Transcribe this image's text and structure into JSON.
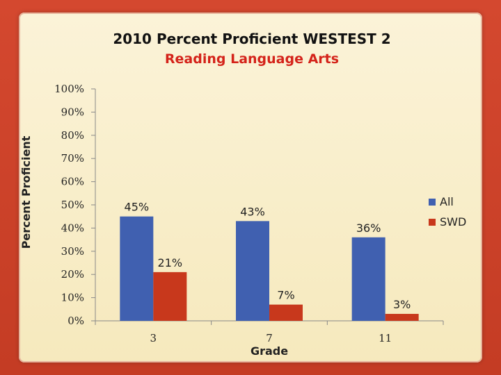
{
  "chart_data": {
    "type": "bar",
    "title": "2010 Percent Proficient WESTEST 2",
    "subtitle": "Reading Language Arts",
    "xlabel": "Grade",
    "ylabel": "Percent Proficient",
    "ylim": [
      0,
      100
    ],
    "y_ticks": [
      "0%",
      "10%",
      "20%",
      "30%",
      "40%",
      "50%",
      "60%",
      "70%",
      "80%",
      "90%",
      "100%"
    ],
    "categories": [
      "3",
      "7",
      "11"
    ],
    "series": [
      {
        "name": "All",
        "values": [
          45,
          43,
          36
        ],
        "labels": [
          "45%",
          "43%",
          "36%"
        ],
        "color": "#4060b0"
      },
      {
        "name": "SWD",
        "values": [
          21,
          7,
          3
        ],
        "labels": [
          "21%",
          "7%",
          "3%"
        ],
        "color": "#c8381c"
      }
    ],
    "legend": "right",
    "grid": false
  }
}
